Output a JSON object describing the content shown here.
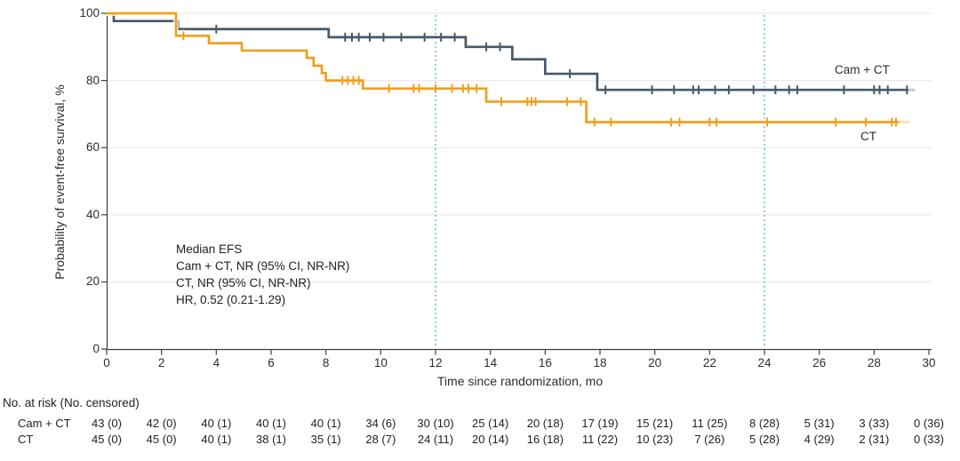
{
  "chart_data": {
    "type": "line",
    "subtype": "kaplan-meier-step",
    "title": "",
    "xlabel": "Time since randomization, mo",
    "ylabel": "Probability of event-free survival, %",
    "xlim": [
      0,
      30
    ],
    "ylim": [
      0,
      100
    ],
    "xticks": [
      0,
      2,
      4,
      6,
      8,
      10,
      12,
      14,
      16,
      18,
      20,
      22,
      24,
      26,
      28,
      30
    ],
    "yticks": [
      0,
      20,
      40,
      60,
      80,
      100
    ],
    "grid": "horizontal gridlines at 20,40,60,80,100, light gray",
    "legend_position": "labels at right end of curves",
    "reference_lines": {
      "months": [
        12,
        24
      ],
      "style": "dotted",
      "color": "#56b7e7"
    },
    "colors": {
      "cam_ct": "#47596a",
      "ct": "#f0a01e",
      "grid": "#eaeaea",
      "axis": "#3f3f3f",
      "reference": "#56b7e7"
    },
    "series": [
      {
        "name": "Cam + CT",
        "color": "#47596a",
        "steps": [
          [
            0,
            100
          ],
          [
            0.26,
            97.7
          ],
          [
            2.6,
            95.3
          ],
          [
            8.1,
            92.9
          ],
          [
            13.1,
            90
          ],
          [
            14.8,
            86.3
          ],
          [
            16,
            82
          ],
          [
            17.9,
            77.2
          ]
        ],
        "end": 29.25,
        "tail_end": 29.5,
        "censors": [
          [
            4,
            95.3
          ],
          [
            8.7,
            92.9
          ],
          [
            8.95,
            92.9
          ],
          [
            9.2,
            92.9
          ],
          [
            9.6,
            92.9
          ],
          [
            10.1,
            92.9
          ],
          [
            10.75,
            92.9
          ],
          [
            11.6,
            92.9
          ],
          [
            12.2,
            92.9
          ],
          [
            12.7,
            92.9
          ],
          [
            13.85,
            90
          ],
          [
            14.35,
            90
          ],
          [
            16.9,
            82
          ],
          [
            18.2,
            77.2
          ],
          [
            19.9,
            77.2
          ],
          [
            20.7,
            77.2
          ],
          [
            21.4,
            77.2
          ],
          [
            21.6,
            77.2
          ],
          [
            22.2,
            77.2
          ],
          [
            22.7,
            77.2
          ],
          [
            23.6,
            77.2
          ],
          [
            24.4,
            77.2
          ],
          [
            24.9,
            77.2
          ],
          [
            25.2,
            77.2
          ],
          [
            26.9,
            77.2
          ],
          [
            28,
            77.2
          ],
          [
            28.2,
            77.2
          ],
          [
            28.5,
            77.2
          ],
          [
            29.2,
            77.2
          ]
        ]
      },
      {
        "name": "CT",
        "color": "#f0a01e",
        "steps": [
          [
            0,
            100
          ],
          [
            2.53,
            93.3
          ],
          [
            3.73,
            91.1
          ],
          [
            4.93,
            88.9
          ],
          [
            7.3,
            86.7
          ],
          [
            7.55,
            84.4
          ],
          [
            7.85,
            82.2
          ],
          [
            8,
            80
          ],
          [
            9.35,
            77.6
          ],
          [
            13.85,
            73.7
          ],
          [
            17.5,
            67.6
          ]
        ],
        "end": 28.9,
        "tail_end": 29.3,
        "censors": [
          [
            2.8,
            93.3
          ],
          [
            8.6,
            80
          ],
          [
            8.8,
            80
          ],
          [
            9,
            80
          ],
          [
            9.2,
            80
          ],
          [
            10.3,
            77.6
          ],
          [
            11.2,
            77.6
          ],
          [
            11.4,
            77.6
          ],
          [
            12,
            77.6
          ],
          [
            12.6,
            77.6
          ],
          [
            13,
            77.6
          ],
          [
            13.2,
            77.6
          ],
          [
            13.5,
            77.6
          ],
          [
            14.4,
            73.7
          ],
          [
            15.35,
            73.7
          ],
          [
            15.5,
            73.7
          ],
          [
            15.65,
            73.7
          ],
          [
            16.8,
            73.7
          ],
          [
            17.3,
            73.7
          ],
          [
            17.8,
            67.6
          ],
          [
            18.4,
            67.6
          ],
          [
            20.6,
            67.6
          ],
          [
            20.9,
            67.6
          ],
          [
            22,
            67.6
          ],
          [
            22.25,
            67.6
          ],
          [
            24.1,
            67.6
          ],
          [
            26.6,
            67.6
          ],
          [
            27.7,
            67.6
          ],
          [
            28.65,
            67.6
          ],
          [
            28.8,
            67.6
          ]
        ]
      }
    ],
    "annotation": {
      "lines": [
        "Median EFS",
        "Cam + CT, NR (95% CI, NR-NR)",
        "CT, NR (95% CI, NR-NR)",
        "HR, 0.52 (0.21-1.29)"
      ]
    },
    "risk_table": {
      "header": "No. at risk (No. censored)",
      "months": [
        0,
        2,
        4,
        6,
        8,
        10,
        12,
        14,
        16,
        18,
        20,
        22,
        24,
        26,
        28,
        30
      ],
      "rows": [
        {
          "label": "Cam + CT",
          "values": [
            "43 (0)",
            "42 (0)",
            "40 (1)",
            "40 (1)",
            "40 (1)",
            "34 (6)",
            "30 (10)",
            "25 (14)",
            "20 (18)",
            "17 (19)",
            "15 (21)",
            "11 (25)",
            "8 (28)",
            "5 (31)",
            "3 (33)",
            "0 (36)"
          ]
        },
        {
          "label": "CT",
          "values": [
            "45 (0)",
            "45 (0)",
            "40 (1)",
            "38 (1)",
            "35 (1)",
            "28 (7)",
            "24 (11)",
            "20 (14)",
            "16 (18)",
            "11 (22)",
            "10 (23)",
            "7 (26)",
            "5 (28)",
            "4 (29)",
            "2 (31)",
            "0 (33)"
          ]
        }
      ]
    }
  }
}
